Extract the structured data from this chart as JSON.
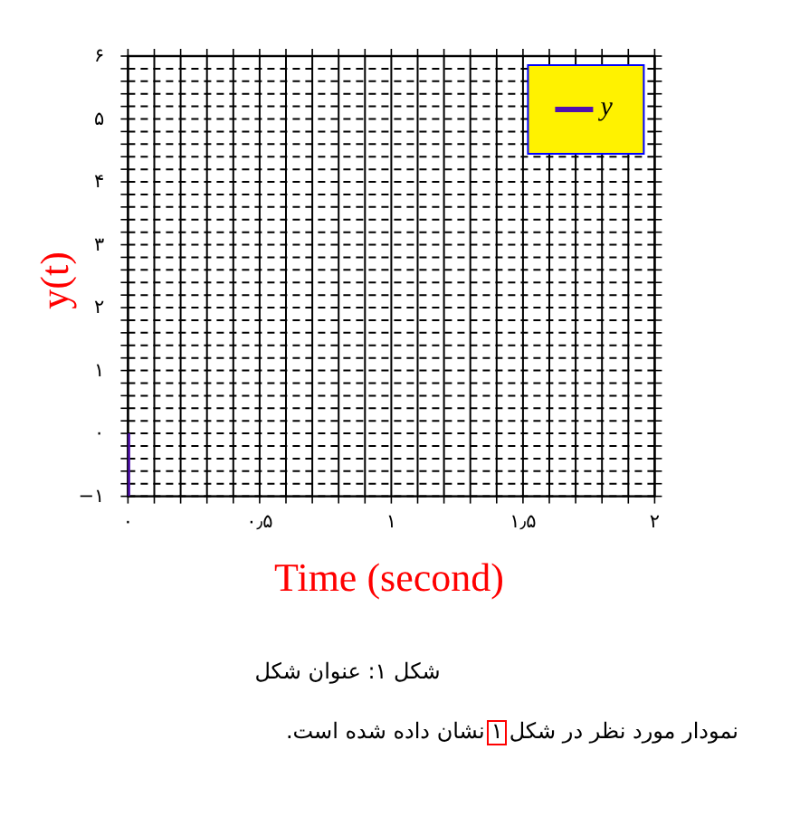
{
  "chart_data": {
    "type": "line",
    "xlabel": "Time (second)",
    "ylabel": "y(t)",
    "x": [
      0,
      0
    ],
    "series": [
      {
        "name": "y",
        "color": "#5010b0",
        "values": [
          -1,
          0
        ]
      }
    ],
    "xlim": [
      0,
      2
    ],
    "ylim": [
      -1,
      6
    ],
    "xticks": [
      {
        "value": 0,
        "label": "۰"
      },
      {
        "value": 0.1,
        "label": null
      },
      {
        "value": 0.2,
        "label": null
      },
      {
        "value": 0.3,
        "label": null
      },
      {
        "value": 0.4,
        "label": null
      },
      {
        "value": 0.5,
        "label": "۰٫۵"
      },
      {
        "value": 0.6,
        "label": null
      },
      {
        "value": 0.7,
        "label": null
      },
      {
        "value": 0.8,
        "label": null
      },
      {
        "value": 0.9,
        "label": null
      },
      {
        "value": 1,
        "label": "۱"
      },
      {
        "value": 1.1,
        "label": null
      },
      {
        "value": 1.2,
        "label": null
      },
      {
        "value": 1.3,
        "label": null
      },
      {
        "value": 1.4,
        "label": null
      },
      {
        "value": 1.5,
        "label": "۱٫۵"
      },
      {
        "value": 1.6,
        "label": null
      },
      {
        "value": 1.7,
        "label": null
      },
      {
        "value": 1.8,
        "label": null
      },
      {
        "value": 1.9,
        "label": null
      },
      {
        "value": 2,
        "label": "۲"
      }
    ],
    "yticks": [
      {
        "value": -1,
        "label": "−۱"
      },
      {
        "value": -0.8,
        "label": null
      },
      {
        "value": -0.6,
        "label": null
      },
      {
        "value": -0.4,
        "label": null
      },
      {
        "value": -0.2,
        "label": null
      },
      {
        "value": 0,
        "label": "۰"
      },
      {
        "value": 0.2,
        "label": null
      },
      {
        "value": 0.4,
        "label": null
      },
      {
        "value": 0.6,
        "label": null
      },
      {
        "value": 0.8,
        "label": null
      },
      {
        "value": 1,
        "label": "۱"
      },
      {
        "value": 1.2,
        "label": null
      },
      {
        "value": 1.4,
        "label": null
      },
      {
        "value": 1.6,
        "label": null
      },
      {
        "value": 1.8,
        "label": null
      },
      {
        "value": 2,
        "label": "۲"
      },
      {
        "value": 2.2,
        "label": null
      },
      {
        "value": 2.4,
        "label": null
      },
      {
        "value": 2.6,
        "label": null
      },
      {
        "value": 2.8,
        "label": null
      },
      {
        "value": 3,
        "label": "۳"
      },
      {
        "value": 3.2,
        "label": null
      },
      {
        "value": 3.4,
        "label": null
      },
      {
        "value": 3.6,
        "label": null
      },
      {
        "value": 3.8,
        "label": null
      },
      {
        "value": 4,
        "label": "۴"
      },
      {
        "value": 4.2,
        "label": null
      },
      {
        "value": 4.4,
        "label": null
      },
      {
        "value": 4.6,
        "label": null
      },
      {
        "value": 4.8,
        "label": null
      },
      {
        "value": 5,
        "label": "۵"
      },
      {
        "value": 5.2,
        "label": null
      },
      {
        "value": 5.4,
        "label": null
      },
      {
        "value": 5.6,
        "label": null
      },
      {
        "value": 5.8,
        "label": null
      },
      {
        "value": 6,
        "label": "۶"
      }
    ],
    "grid": true,
    "legend": "top right",
    "annotations": [
      "شکل ۱: عنوان شکل",
      "نمودار مورد نظر در شکل",
      "۱",
      "نشان داده شده است."
    ]
  }
}
